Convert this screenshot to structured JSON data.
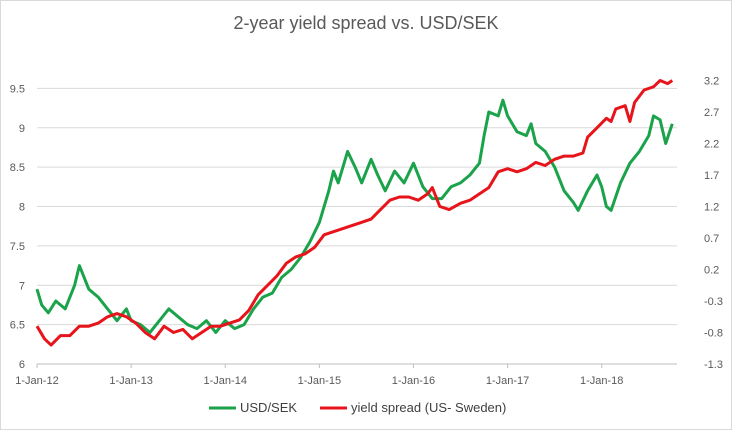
{
  "chart_data": {
    "type": "line",
    "title": "2-year yield spread vs. USD/SEK",
    "xlabel": "",
    "ylabel_left": "",
    "ylabel_right": "",
    "x_tick_labels": [
      "1-Jan-12",
      "1-Jan-13",
      "1-Jan-14",
      "1-Jan-15",
      "1-Jan-16",
      "1-Jan-17",
      "1-Jan-18"
    ],
    "x_range": [
      2012.0,
      2018.8
    ],
    "left_axis": {
      "ylim": [
        6,
        10
      ],
      "ticks": [
        "6",
        "6.5",
        "7",
        "7.5",
        "8",
        "8.5",
        "9",
        "9.5"
      ]
    },
    "right_axis": {
      "ylim": [
        -1.3,
        3.7
      ],
      "ticks": [
        "-1.3",
        "-0.8",
        "-0.3",
        "0.2",
        "0.7",
        "1.2",
        "1.7",
        "2.2",
        "2.7",
        "3.2"
      ]
    },
    "grid": "horizontal",
    "legend_position": "bottom",
    "series": [
      {
        "name": "USD/SEK",
        "axis": "left",
        "color": "#1aa34a",
        "points": [
          [
            2012.0,
            6.95
          ],
          [
            2012.05,
            6.75
          ],
          [
            2012.12,
            6.65
          ],
          [
            2012.2,
            6.8
          ],
          [
            2012.3,
            6.7
          ],
          [
            2012.4,
            7.0
          ],
          [
            2012.45,
            7.25
          ],
          [
            2012.55,
            6.95
          ],
          [
            2012.65,
            6.85
          ],
          [
            2012.75,
            6.7
          ],
          [
            2012.85,
            6.55
          ],
          [
            2012.95,
            6.7
          ],
          [
            2013.0,
            6.55
          ],
          [
            2013.1,
            6.5
          ],
          [
            2013.2,
            6.4
          ],
          [
            2013.3,
            6.55
          ],
          [
            2013.4,
            6.7
          ],
          [
            2013.5,
            6.6
          ],
          [
            2013.6,
            6.5
          ],
          [
            2013.7,
            6.45
          ],
          [
            2013.8,
            6.55
          ],
          [
            2013.9,
            6.4
          ],
          [
            2014.0,
            6.55
          ],
          [
            2014.1,
            6.45
          ],
          [
            2014.2,
            6.5
          ],
          [
            2014.3,
            6.7
          ],
          [
            2014.4,
            6.85
          ],
          [
            2014.5,
            6.9
          ],
          [
            2014.6,
            7.1
          ],
          [
            2014.7,
            7.2
          ],
          [
            2014.8,
            7.35
          ],
          [
            2014.9,
            7.55
          ],
          [
            2015.0,
            7.8
          ],
          [
            2015.1,
            8.2
          ],
          [
            2015.15,
            8.45
          ],
          [
            2015.2,
            8.3
          ],
          [
            2015.3,
            8.7
          ],
          [
            2015.38,
            8.5
          ],
          [
            2015.45,
            8.3
          ],
          [
            2015.55,
            8.6
          ],
          [
            2015.62,
            8.4
          ],
          [
            2015.7,
            8.2
          ],
          [
            2015.8,
            8.45
          ],
          [
            2015.9,
            8.3
          ],
          [
            2016.0,
            8.55
          ],
          [
            2016.1,
            8.25
          ],
          [
            2016.2,
            8.1
          ],
          [
            2016.3,
            8.1
          ],
          [
            2016.4,
            8.25
          ],
          [
            2016.5,
            8.3
          ],
          [
            2016.6,
            8.4
          ],
          [
            2016.7,
            8.55
          ],
          [
            2016.75,
            8.9
          ],
          [
            2016.8,
            9.2
          ],
          [
            2016.9,
            9.15
          ],
          [
            2016.95,
            9.35
          ],
          [
            2017.0,
            9.15
          ],
          [
            2017.1,
            8.95
          ],
          [
            2017.2,
            8.9
          ],
          [
            2017.25,
            9.05
          ],
          [
            2017.3,
            8.8
          ],
          [
            2017.4,
            8.7
          ],
          [
            2017.5,
            8.5
          ],
          [
            2017.6,
            8.2
          ],
          [
            2017.7,
            8.05
          ],
          [
            2017.75,
            7.95
          ],
          [
            2017.85,
            8.2
          ],
          [
            2017.95,
            8.4
          ],
          [
            2018.0,
            8.25
          ],
          [
            2018.05,
            8.0
          ],
          [
            2018.1,
            7.95
          ],
          [
            2018.2,
            8.3
          ],
          [
            2018.3,
            8.55
          ],
          [
            2018.4,
            8.7
          ],
          [
            2018.5,
            8.9
          ],
          [
            2018.55,
            9.15
          ],
          [
            2018.62,
            9.1
          ],
          [
            2018.68,
            8.8
          ],
          [
            2018.75,
            9.05
          ]
        ]
      },
      {
        "name": "yield spread (US- Sweden)",
        "axis": "right",
        "color": "#e8141b",
        "points": [
          [
            2012.0,
            -0.7
          ],
          [
            2012.08,
            -0.9
          ],
          [
            2012.15,
            -1.0
          ],
          [
            2012.25,
            -0.85
          ],
          [
            2012.35,
            -0.85
          ],
          [
            2012.45,
            -0.7
          ],
          [
            2012.55,
            -0.7
          ],
          [
            2012.65,
            -0.65
          ],
          [
            2012.75,
            -0.55
          ],
          [
            2012.85,
            -0.5
          ],
          [
            2012.95,
            -0.55
          ],
          [
            2013.05,
            -0.65
          ],
          [
            2013.15,
            -0.8
          ],
          [
            2013.25,
            -0.9
          ],
          [
            2013.35,
            -0.7
          ],
          [
            2013.45,
            -0.8
          ],
          [
            2013.55,
            -0.75
          ],
          [
            2013.65,
            -0.9
          ],
          [
            2013.75,
            -0.8
          ],
          [
            2013.85,
            -0.7
          ],
          [
            2013.95,
            -0.7
          ],
          [
            2014.05,
            -0.65
          ],
          [
            2014.15,
            -0.6
          ],
          [
            2014.25,
            -0.45
          ],
          [
            2014.35,
            -0.2
          ],
          [
            2014.45,
            -0.05
          ],
          [
            2014.55,
            0.1
          ],
          [
            2014.65,
            0.3
          ],
          [
            2014.75,
            0.4
          ],
          [
            2014.85,
            0.45
          ],
          [
            2014.95,
            0.55
          ],
          [
            2015.05,
            0.75
          ],
          [
            2015.15,
            0.8
          ],
          [
            2015.25,
            0.85
          ],
          [
            2015.35,
            0.9
          ],
          [
            2015.45,
            0.95
          ],
          [
            2015.55,
            1.0
          ],
          [
            2015.65,
            1.15
          ],
          [
            2015.75,
            1.3
          ],
          [
            2015.85,
            1.35
          ],
          [
            2015.95,
            1.35
          ],
          [
            2016.05,
            1.3
          ],
          [
            2016.15,
            1.4
          ],
          [
            2016.2,
            1.5
          ],
          [
            2016.28,
            1.2
          ],
          [
            2016.38,
            1.15
          ],
          [
            2016.5,
            1.25
          ],
          [
            2016.6,
            1.3
          ],
          [
            2016.7,
            1.4
          ],
          [
            2016.8,
            1.5
          ],
          [
            2016.9,
            1.75
          ],
          [
            2017.0,
            1.8
          ],
          [
            2017.1,
            1.75
          ],
          [
            2017.2,
            1.8
          ],
          [
            2017.3,
            1.9
          ],
          [
            2017.4,
            1.85
          ],
          [
            2017.5,
            1.95
          ],
          [
            2017.6,
            2.0
          ],
          [
            2017.7,
            2.0
          ],
          [
            2017.8,
            2.05
          ],
          [
            2017.85,
            2.3
          ],
          [
            2017.95,
            2.45
          ],
          [
            2018.05,
            2.6
          ],
          [
            2018.1,
            2.55
          ],
          [
            2018.15,
            2.75
          ],
          [
            2018.25,
            2.8
          ],
          [
            2018.3,
            2.55
          ],
          [
            2018.35,
            2.85
          ],
          [
            2018.45,
            3.05
          ],
          [
            2018.55,
            3.1
          ],
          [
            2018.62,
            3.2
          ],
          [
            2018.7,
            3.15
          ],
          [
            2018.75,
            3.2
          ]
        ]
      }
    ]
  }
}
